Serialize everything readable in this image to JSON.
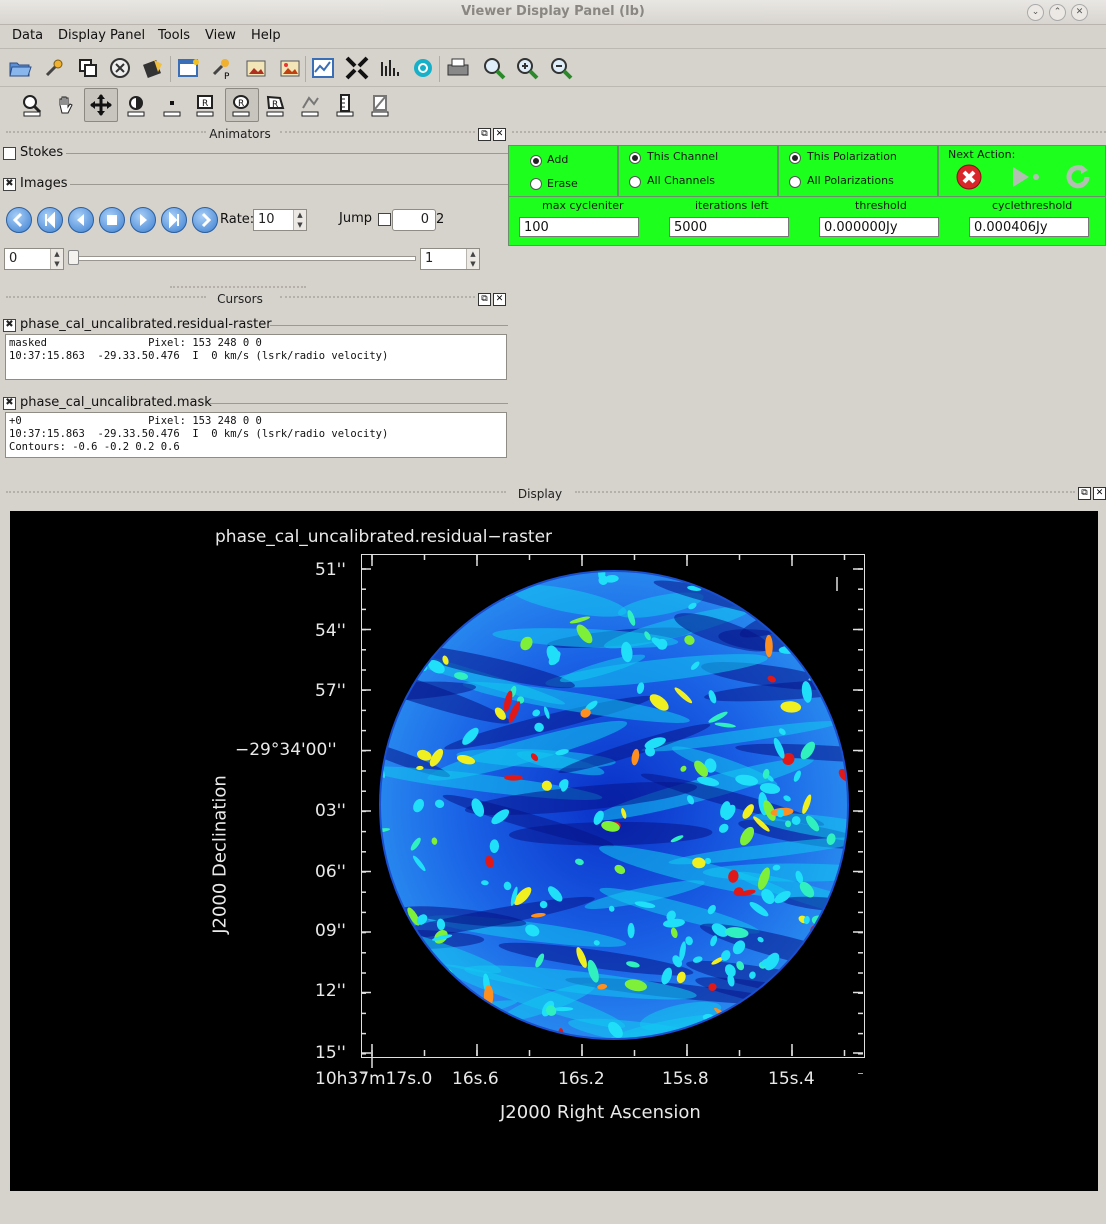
{
  "window": {
    "title": "Viewer Display Panel (lb)"
  },
  "menu": [
    "Data",
    "Display Panel",
    "Tools",
    "View",
    "Help"
  ],
  "toolbar1_icons": [
    "open-folder-icon",
    "wrench-icon",
    "copy-icon",
    "close-circle-icon",
    "save-disk-icon",
    "new-panel-icon",
    "print-options-icon",
    "image-save-icon",
    "image-export-icon",
    "chart-icon",
    "shrink-icon",
    "histogram-icon",
    "target-icon",
    "printer-icon",
    "zoom-fit-icon",
    "zoom-in-icon",
    "zoom-out-icon"
  ],
  "toolbar2_icons": [
    "zoom-tool-icon",
    "pan-hand-icon",
    "move-arrows-icon",
    "contrast-icon",
    "point-icon",
    "rectangle-region-icon",
    "ellipse-region-icon",
    "polygon-region-icon",
    "polyline-icon",
    "ruler-icon",
    "position-icon"
  ],
  "animators": {
    "header": "Animators",
    "stokes_label": "Stokes",
    "images_label": "Images",
    "rate_label": "Rate:",
    "rate_value": "10",
    "jump_label": "Jump",
    "jump_value": "0",
    "jump_total": "2",
    "frame_start": "0",
    "frame_end": "1"
  },
  "clean": {
    "add_label": "Add",
    "erase_label": "Erase",
    "this_channel": "This Channel",
    "all_channels": "All Channels",
    "this_pol": "This Polarization",
    "all_pols": "All Polarizations",
    "next_action": "Next Action:",
    "fields": [
      {
        "label": "max cycleniter",
        "value": "100"
      },
      {
        "label": "iterations left",
        "value": "5000"
      },
      {
        "label": "threshold",
        "value": "0.000000Jy"
      },
      {
        "label": "cyclethreshold",
        "value": "0.000406Jy"
      }
    ],
    "colors": {
      "panel": "#1dff1d"
    }
  },
  "cursors": {
    "header": "Cursors",
    "items": [
      {
        "name": "phase_cal_uncalibrated.residual-raster",
        "line1": "masked                Pixel: 153 248 0 0",
        "line2": "10:37:15.863  -29.33.50.476  I  0 km/s (lsrk/radio velocity)",
        "line3": ""
      },
      {
        "name": "phase_cal_uncalibrated.mask",
        "line1": "+0                    Pixel: 153 248 0 0",
        "line2": "10:37:15.863  -29.33.50.476  I  0 km/s (lsrk/radio velocity)",
        "line3": "Contours: -0.6 -0.2 0.2 0.6"
      }
    ]
  },
  "display": {
    "header": "Display",
    "plot_title": "phase_cal_uncalibrated.residual−raster",
    "ylabel": "J2000 Declination",
    "xlabel": "J2000 Right Ascension",
    "yticks": [
      "51''",
      "54''",
      "57''",
      "−29°34'00''",
      "03''",
      "06''",
      "09''",
      "12''",
      "15''"
    ],
    "xticks": [
      "10h37m17s.0",
      "16s.6",
      "16s.2",
      "15s.8",
      "15s.4"
    ]
  }
}
